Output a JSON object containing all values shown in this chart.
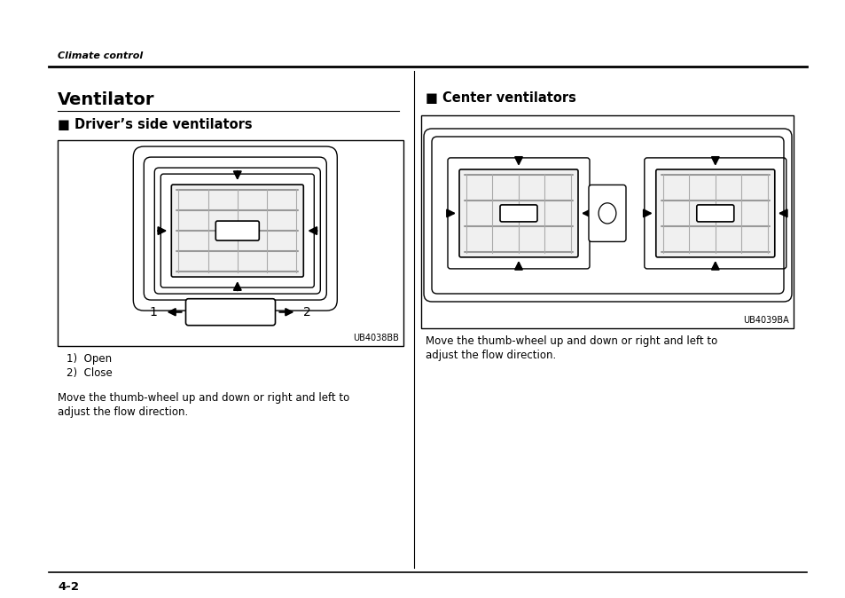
{
  "bg_color": "#ffffff",
  "page_width": 9.54,
  "page_height": 6.74,
  "header_italic": "Climate control",
  "title_left": "Ventilator",
  "section1_header": "■ Driver’s side ventilators",
  "section2_header": "■ Center ventilators",
  "img1_label": "UB4038BB",
  "img2_label": "UB4039BA",
  "list_item1": "1)  Open",
  "list_item2": "2)  Close",
  "body_text_left_1": "Move the thumb-wheel up and down or right and left to",
  "body_text_left_2": "adjust the flow direction.",
  "body_text_right_1": "Move the thumb-wheel up and down or right and left to",
  "body_text_right_2": "adjust the flow direction.",
  "footer_text": "4-2"
}
